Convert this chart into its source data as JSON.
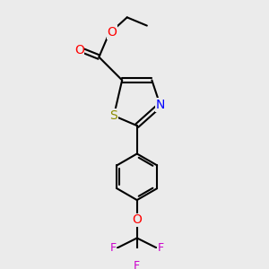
{
  "bg_color": "#ebebeb",
  "figsize": [
    3.0,
    3.0
  ],
  "dpi": 100,
  "colors": {
    "C": "#000000",
    "S": "#8B8B00",
    "N": "#0000FF",
    "O": "#FF0000",
    "F": "#CC00CC",
    "bond": "#000000"
  },
  "font_size": 9,
  "bond_width": 1.5
}
